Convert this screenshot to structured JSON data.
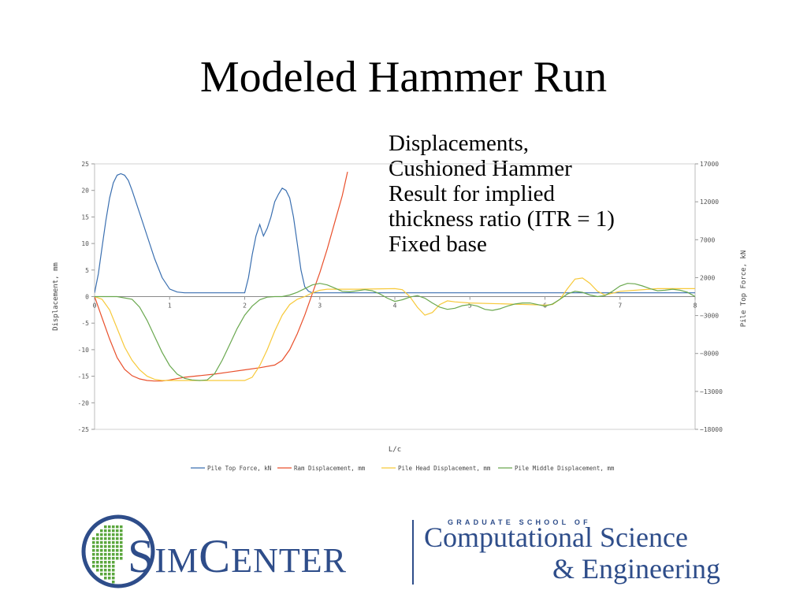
{
  "slide": {
    "title": "Modeled Hammer Run",
    "caption_lines": [
      "Displacements,",
      "Cushioned Hammer",
      "Result for implied",
      "thickness ratio (ITR = 1)",
      "Fixed base"
    ]
  },
  "logo": {
    "main_text": "SimCenter",
    "small_caps_text": "GRADUATE SCHOOL OF",
    "line1": "Computational Science",
    "line2": "& Engineering",
    "color": "#2e4d8a",
    "globe_color": "#5aa63c"
  },
  "chart_data": {
    "type": "line",
    "xlabel": "L/c",
    "ylabel": "Displacement, mm",
    "y2label": "Pile Top Force, kN",
    "xlim": [
      0,
      8
    ],
    "ylim": [
      -25,
      25
    ],
    "y2lim": [
      -18000,
      17000
    ],
    "x_ticks": [
      "0",
      "1",
      "2",
      "3",
      "4",
      "5",
      "6",
      "7",
      "8"
    ],
    "y_ticks": [
      "25",
      "20",
      "15",
      "10",
      "5",
      "0",
      "-5",
      "-10",
      "-15",
      "-20",
      "-25"
    ],
    "y2_ticks": [
      "17000",
      "12000",
      "7000",
      "2000",
      "-3000",
      "-8000",
      "-13000",
      "-18000"
    ],
    "legend_position": "bottom",
    "series": [
      {
        "name": "Pile Top Force, kN",
        "color": "#3a6fb0",
        "axis": "right",
        "x": [
          0,
          0.05,
          0.1,
          0.15,
          0.2,
          0.25,
          0.3,
          0.35,
          0.4,
          0.45,
          0.5,
          0.6,
          0.7,
          0.8,
          0.9,
          1.0,
          1.1,
          1.2,
          1.3,
          1.5,
          1.7,
          1.9,
          2.0,
          2.05,
          2.1,
          2.15,
          2.2,
          2.25,
          2.3,
          2.35,
          2.4,
          2.45,
          2.5,
          2.55,
          2.6,
          2.65,
          2.7,
          2.75,
          2.8,
          2.85,
          2.9,
          3.0,
          3.5,
          4.0,
          4.5,
          5.0,
          5.5,
          6.0,
          6.5,
          7.0,
          7.5,
          8.0
        ],
        "y": [
          0,
          2500,
          6000,
          9500,
          12500,
          14500,
          15500,
          15700,
          15500,
          14800,
          13500,
          10500,
          7500,
          4500,
          2000,
          500,
          100,
          0,
          0,
          0,
          0,
          0,
          0,
          2000,
          5000,
          7500,
          9000,
          7500,
          8500,
          10000,
          12000,
          13000,
          13800,
          13500,
          12500,
          10000,
          6500,
          3000,
          800,
          200,
          0,
          0,
          0,
          0,
          0,
          0,
          0,
          0,
          0,
          0,
          0,
          0
        ]
      },
      {
        "name": "Ram Displacement, mm",
        "color": "#e9502c",
        "axis": "left",
        "x": [
          0,
          0.1,
          0.2,
          0.3,
          0.4,
          0.5,
          0.6,
          0.7,
          0.8,
          0.9,
          1.0,
          1.2,
          1.4,
          1.6,
          1.8,
          2.0,
          2.2,
          2.4,
          2.5,
          2.6,
          2.7,
          2.8,
          2.9,
          3.0,
          3.1,
          3.2,
          3.3,
          3.37
        ],
        "y": [
          0,
          -4,
          -8,
          -11.5,
          -13.7,
          -14.9,
          -15.5,
          -15.8,
          -15.9,
          -15.9,
          -15.7,
          -15.2,
          -14.9,
          -14.6,
          -14.2,
          -13.8,
          -13.4,
          -12.9,
          -12,
          -10,
          -7,
          -3.5,
          0.5,
          4.5,
          9,
          14,
          19,
          23.5
        ]
      },
      {
        "name": "Pile Head Displacement, mm",
        "color": "#f7c93a",
        "axis": "left",
        "x": [
          0,
          0.1,
          0.2,
          0.3,
          0.4,
          0.5,
          0.6,
          0.7,
          0.8,
          0.9,
          1.0,
          1.2,
          1.4,
          1.6,
          1.8,
          2.0,
          2.1,
          2.2,
          2.3,
          2.4,
          2.5,
          2.6,
          2.7,
          2.8,
          2.9,
          3.0,
          3.1,
          3.5,
          4.0,
          4.1,
          4.2,
          4.3,
          4.4,
          4.5,
          4.6,
          4.7,
          4.8,
          5.0,
          5.5,
          6.0,
          6.1,
          6.2,
          6.3,
          6.4,
          6.5,
          6.6,
          6.7,
          6.8,
          7.0,
          7.5,
          8.0
        ],
        "y": [
          0,
          -0.5,
          -2.5,
          -6,
          -9.5,
          -12,
          -13.8,
          -15,
          -15.6,
          -15.8,
          -15.8,
          -15.8,
          -15.8,
          -15.8,
          -15.8,
          -15.8,
          -15.2,
          -13,
          -10,
          -6.5,
          -3.5,
          -1.5,
          -0.5,
          0,
          0.7,
          1.2,
          1.4,
          1.4,
          1.5,
          1.3,
          0,
          -2,
          -3.5,
          -3,
          -1.5,
          -0.8,
          -1,
          -1.2,
          -1.4,
          -1.6,
          -1.5,
          -0.5,
          1.5,
          3.3,
          3.5,
          2.5,
          1,
          0.3,
          1,
          1.5,
          1.5
        ]
      },
      {
        "name": "Pile Middle Displacement, mm",
        "color": "#6aa84f",
        "axis": "left",
        "x": [
          0,
          0.3,
          0.5,
          0.6,
          0.7,
          0.8,
          0.9,
          1.0,
          1.1,
          1.2,
          1.3,
          1.4,
          1.5,
          1.6,
          1.7,
          1.8,
          1.9,
          2.0,
          2.1,
          2.2,
          2.3,
          2.4,
          2.5,
          2.6,
          2.7,
          2.8,
          2.9,
          3.0,
          3.1,
          3.2,
          3.3,
          3.4,
          3.5,
          3.6,
          3.7,
          3.8,
          3.9,
          4.0,
          4.1,
          4.2,
          4.3,
          4.4,
          4.5,
          4.6,
          4.7,
          4.8,
          4.9,
          5.0,
          5.1,
          5.2,
          5.3,
          5.4,
          5.5,
          5.6,
          5.7,
          5.8,
          5.9,
          6.0,
          6.1,
          6.2,
          6.3,
          6.4,
          6.5,
          6.6,
          6.7,
          6.8,
          6.9,
          7.0,
          7.1,
          7.2,
          7.3,
          7.4,
          7.5,
          7.6,
          7.7,
          7.8,
          7.9,
          8.0
        ],
        "y": [
          0,
          0,
          -0.5,
          -2,
          -4.5,
          -7.5,
          -10.5,
          -13,
          -14.6,
          -15.4,
          -15.7,
          -15.8,
          -15.7,
          -14.5,
          -12,
          -9,
          -6,
          -3.5,
          -1.8,
          -0.6,
          -0.1,
          0,
          0,
          0.3,
          0.8,
          1.5,
          2.2,
          2.5,
          2.2,
          1.6,
          1,
          0.9,
          1.1,
          1.3,
          1.1,
          0.5,
          -0.3,
          -0.9,
          -0.6,
          -0.1,
          0.2,
          -0.3,
          -1.2,
          -2,
          -2.4,
          -2.2,
          -1.7,
          -1.5,
          -1.8,
          -2.4,
          -2.6,
          -2.3,
          -1.8,
          -1.4,
          -1.2,
          -1.2,
          -1.5,
          -1.8,
          -1.4,
          -0.5,
          0.5,
          1,
          0.8,
          0.3,
          0,
          0.2,
          1,
          2,
          2.5,
          2.4,
          2,
          1.5,
          1.1,
          1.2,
          1.4,
          1.2,
          0.8,
          0
        ]
      }
    ]
  }
}
